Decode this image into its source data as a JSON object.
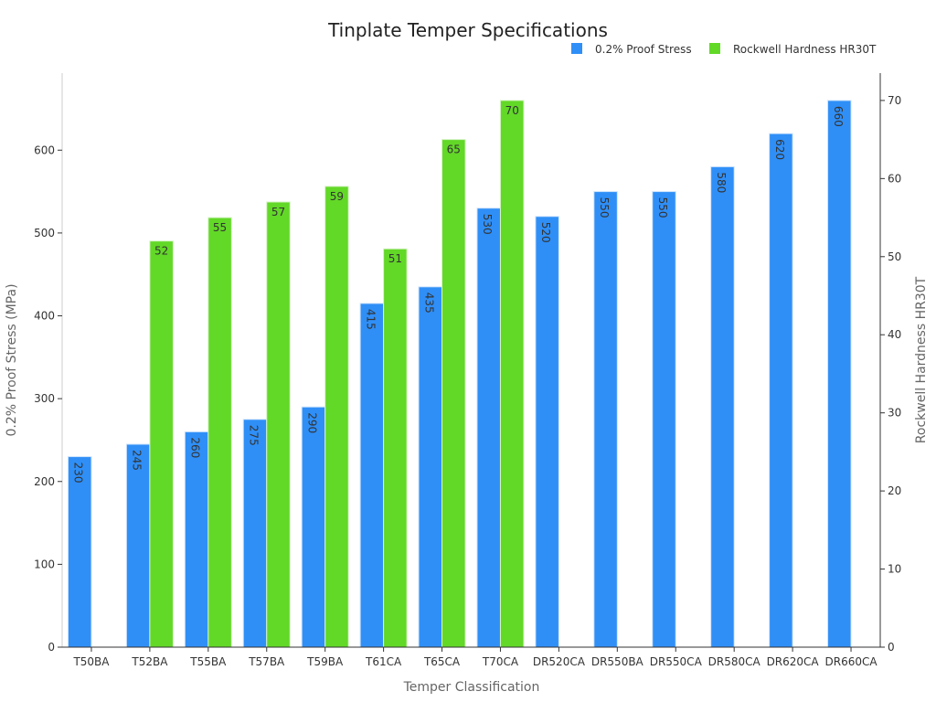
{
  "chart_data": {
    "type": "bar",
    "title": "Tinplate Temper Specifications",
    "xlabel": "Temper Classification",
    "ylabel_left": "0.2% Proof Stress (MPa)",
    "ylabel_right": "Rockwell Hardness HR30T",
    "categories": [
      "T50BA",
      "T52BA",
      "T55BA",
      "T57BA",
      "T59BA",
      "T61CA",
      "T65CA",
      "T70CA",
      "DR520CA",
      "DR550BA",
      "DR550CA",
      "DR580CA",
      "DR620CA",
      "DR660CA"
    ],
    "series": [
      {
        "name": "0.2% Proof Stress",
        "axis": "left",
        "color": "#2f8ff7",
        "values": [
          230,
          245,
          260,
          275,
          290,
          415,
          435,
          530,
          520,
          550,
          550,
          580,
          620,
          660
        ]
      },
      {
        "name": "Rockwell Hardness HR30T",
        "axis": "right",
        "color": "#62d827",
        "values": [
          null,
          52,
          55,
          57,
          59,
          51,
          65,
          70,
          null,
          null,
          null,
          null,
          null,
          null
        ]
      }
    ],
    "ylim_left": [
      0,
      693
    ],
    "yticks_left": [
      0,
      100,
      200,
      300,
      400,
      500,
      600
    ],
    "ylim_right": [
      0,
      73.5
    ],
    "yticks_right": [
      0,
      10,
      20,
      30,
      40,
      50,
      60,
      70
    ],
    "grid": false,
    "legend_position": "top-right"
  }
}
